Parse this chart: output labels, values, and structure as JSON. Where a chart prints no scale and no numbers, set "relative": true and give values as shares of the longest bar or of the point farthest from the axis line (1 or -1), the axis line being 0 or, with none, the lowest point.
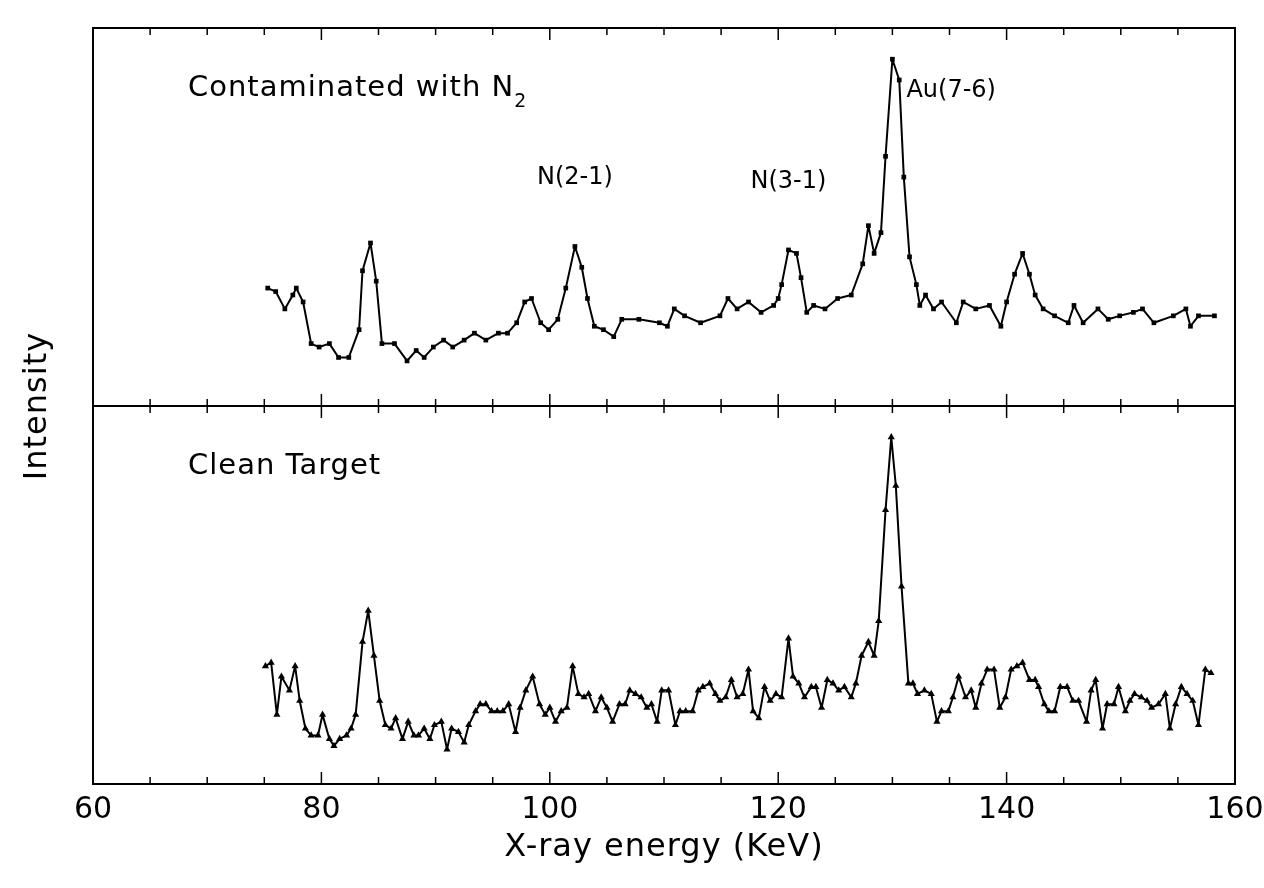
{
  "chart_data": [
    {
      "type": "line",
      "relative": true,
      "ylabel": "Intensity",
      "xlim": [
        60,
        160
      ],
      "xticks": [
        60,
        {
          "value": 65,
          "label": null
        },
        {
          "value": 70,
          "label": null
        },
        {
          "value": 75,
          "label": null
        },
        80,
        {
          "value": 85,
          "label": null
        },
        {
          "value": 90,
          "label": null
        },
        {
          "value": 95,
          "label": null
        },
        100,
        {
          "value": 105,
          "label": null
        },
        {
          "value": 110,
          "label": null
        },
        {
          "value": 115,
          "label": null
        },
        120,
        {
          "value": 125,
          "label": null
        },
        {
          "value": 130,
          "label": null
        },
        {
          "value": 135,
          "label": null
        },
        140,
        {
          "value": 145,
          "label": null
        },
        {
          "value": 150,
          "label": null
        },
        {
          "value": 155,
          "label": null
        },
        160
      ],
      "tick_labels": false,
      "grid": false,
      "marker": "square",
      "line_style": "solid",
      "annotations": [
        "Contaminated with N$_{2}$",
        {
          "text": "N(2-1)",
          "x": 102.2,
          "y": 0.46
        },
        {
          "text": "N(3-1)",
          "x": 120.9,
          "y": 0.45
        },
        {
          "text": "Au(7-6)",
          "x": 130.0,
          "y": 1.0
        }
      ],
      "series": [
        {
          "color": "#000000",
          "x": [
            75.3,
            76.0,
            76.8,
            77.5,
            77.8,
            78.4,
            79.1,
            79.8,
            80.7,
            81.5,
            82.4,
            83.3,
            83.6,
            84.3,
            84.8,
            85.3,
            86.4,
            87.5,
            88.3,
            89.0,
            89.8,
            90.7,
            91.5,
            92.5,
            93.4,
            94.4,
            95.5,
            96.3,
            97.1,
            97.8,
            98.4,
            99.2,
            99.9,
            100.7,
            101.4,
            102.2,
            102.8,
            103.3,
            103.9,
            104.7,
            105.6,
            106.3,
            107.8,
            109.6,
            110.3,
            110.9,
            111.8,
            113.2,
            114.9,
            115.6,
            116.4,
            117.4,
            118.5,
            119.6,
            120.0,
            120.3,
            120.9,
            121.6,
            122.0,
            122.5,
            123.1,
            124.1,
            125.2,
            126.4,
            127.4,
            127.9,
            128.4,
            129.0,
            129.4,
            130.0,
            130.6,
            131.0,
            131.5,
            132.1,
            132.4,
            132.9,
            133.6,
            134.3,
            135.6,
            136.2,
            137.3,
            138.5,
            139.5,
            140.0,
            140.7,
            141.4,
            142.0,
            142.5,
            143.2,
            144.2,
            145.4,
            145.9,
            146.7,
            148.0,
            148.9,
            149.9,
            151.1,
            151.9,
            152.9,
            154.6,
            155.7,
            156.1,
            156.8,
            158.2
          ],
          "values": [
            0.34,
            0.33,
            0.28,
            0.32,
            0.34,
            0.3,
            0.18,
            0.17,
            0.18,
            0.14,
            0.14,
            0.22,
            0.39,
            0.47,
            0.36,
            0.18,
            0.18,
            0.13,
            0.16,
            0.14,
            0.17,
            0.19,
            0.17,
            0.19,
            0.21,
            0.19,
            0.21,
            0.21,
            0.24,
            0.3,
            0.31,
            0.24,
            0.22,
            0.25,
            0.34,
            0.46,
            0.4,
            0.31,
            0.23,
            0.22,
            0.2,
            0.25,
            0.25,
            0.24,
            0.23,
            0.28,
            0.26,
            0.24,
            0.26,
            0.31,
            0.28,
            0.3,
            0.27,
            0.29,
            0.31,
            0.35,
            0.45,
            0.44,
            0.37,
            0.27,
            0.29,
            0.28,
            0.31,
            0.32,
            0.41,
            0.52,
            0.44,
            0.5,
            0.72,
            1.0,
            0.94,
            0.66,
            0.43,
            0.35,
            0.29,
            0.32,
            0.28,
            0.3,
            0.24,
            0.3,
            0.28,
            0.29,
            0.23,
            0.3,
            0.38,
            0.44,
            0.38,
            0.32,
            0.28,
            0.26,
            0.24,
            0.29,
            0.24,
            0.28,
            0.25,
            0.26,
            0.27,
            0.28,
            0.24,
            0.26,
            0.28,
            0.23,
            0.26,
            0.26
          ]
        }
      ]
    },
    {
      "type": "line",
      "relative": true,
      "xlabel": "X-ray energy (KeV)",
      "xlim": [
        60,
        160
      ],
      "xticks": [
        60,
        {
          "value": 65,
          "label": null
        },
        {
          "value": 70,
          "label": null
        },
        {
          "value": 75,
          "label": null
        },
        80,
        {
          "value": 85,
          "label": null
        },
        {
          "value": 90,
          "label": null
        },
        {
          "value": 95,
          "label": null
        },
        100,
        {
          "value": 105,
          "label": null
        },
        {
          "value": 110,
          "label": null
        },
        {
          "value": 115,
          "label": null
        },
        120,
        {
          "value": 125,
          "label": null
        },
        {
          "value": 130,
          "label": null
        },
        {
          "value": 135,
          "label": null
        },
        140,
        {
          "value": 145,
          "label": null
        },
        {
          "value": 150,
          "label": null
        },
        {
          "value": 155,
          "label": null
        },
        160
      ],
      "tick_labels": "x",
      "grid": false,
      "marker": "triangle",
      "line_style": "solid",
      "annotations": [
        "Clean Target"
      ],
      "series": [
        {
          "color": "#000000",
          "x": [
            75.1,
            75.6,
            76.1,
            76.5,
            77.2,
            77.7,
            78.1,
            78.6,
            79.1,
            79.7,
            80.1,
            80.7,
            81.1,
            81.6,
            82.2,
            82.6,
            83.0,
            83.6,
            84.1,
            84.6,
            85.1,
            85.6,
            86.1,
            86.5,
            87.1,
            87.6,
            88.1,
            88.5,
            89.0,
            89.5,
            89.9,
            90.5,
            91.0,
            91.4,
            92.0,
            92.5,
            92.9,
            93.5,
            93.9,
            94.4,
            94.9,
            95.4,
            95.9,
            96.4,
            97.0,
            97.4,
            97.9,
            98.5,
            99.1,
            99.6,
            100.0,
            100.5,
            101.0,
            101.5,
            102.0,
            102.5,
            103.0,
            103.4,
            104.0,
            104.5,
            105.0,
            105.5,
            106.1,
            106.6,
            107.0,
            107.5,
            108.0,
            108.5,
            108.9,
            109.4,
            109.8,
            110.4,
            111.0,
            111.4,
            111.9,
            112.5,
            113.0,
            113.4,
            114.0,
            114.5,
            114.9,
            115.4,
            115.9,
            116.4,
            116.9,
            117.4,
            117.8,
            118.3,
            118.8,
            119.3,
            119.8,
            120.3,
            120.9,
            121.3,
            121.8,
            122.3,
            122.9,
            123.3,
            123.8,
            124.3,
            124.8,
            125.3,
            125.8,
            126.4,
            126.8,
            127.3,
            127.9,
            128.4,
            128.8,
            129.4,
            129.9,
            130.3,
            130.8,
            131.4,
            131.8,
            132.2,
            132.8,
            133.4,
            133.9,
            134.3,
            134.9,
            135.3,
            135.8,
            136.4,
            136.9,
            137.3,
            137.8,
            138.3,
            138.9,
            139.4,
            139.9,
            140.4,
            140.9,
            141.4,
            142.0,
            142.5,
            142.8,
            143.3,
            143.7,
            144.2,
            144.7,
            145.3,
            145.8,
            146.3,
            147.0,
            147.4,
            147.8,
            148.4,
            148.8,
            149.4,
            149.8,
            150.4,
            150.8,
            151.2,
            151.8,
            152.3,
            152.7,
            153.3,
            153.9,
            154.3,
            154.8,
            155.3,
            155.8,
            156.3,
            156.8,
            157.4,
            157.9
          ],
          "values": [
            0.34,
            0.35,
            0.2,
            0.31,
            0.27,
            0.34,
            0.24,
            0.16,
            0.14,
            0.14,
            0.2,
            0.13,
            0.11,
            0.13,
            0.14,
            0.16,
            0.2,
            0.41,
            0.5,
            0.37,
            0.24,
            0.17,
            0.16,
            0.19,
            0.13,
            0.18,
            0.14,
            0.14,
            0.16,
            0.13,
            0.17,
            0.18,
            0.1,
            0.16,
            0.15,
            0.12,
            0.17,
            0.21,
            0.23,
            0.23,
            0.21,
            0.21,
            0.21,
            0.23,
            0.15,
            0.22,
            0.27,
            0.31,
            0.23,
            0.2,
            0.22,
            0.18,
            0.21,
            0.22,
            0.34,
            0.26,
            0.25,
            0.26,
            0.21,
            0.25,
            0.22,
            0.18,
            0.23,
            0.23,
            0.27,
            0.26,
            0.25,
            0.22,
            0.23,
            0.18,
            0.27,
            0.27,
            0.17,
            0.21,
            0.21,
            0.21,
            0.27,
            0.28,
            0.29,
            0.26,
            0.24,
            0.25,
            0.3,
            0.25,
            0.26,
            0.33,
            0.21,
            0.19,
            0.28,
            0.24,
            0.26,
            0.25,
            0.42,
            0.31,
            0.29,
            0.25,
            0.28,
            0.28,
            0.22,
            0.3,
            0.29,
            0.27,
            0.28,
            0.25,
            0.29,
            0.37,
            0.41,
            0.37,
            0.47,
            0.79,
            1.0,
            0.86,
            0.57,
            0.29,
            0.29,
            0.26,
            0.27,
            0.26,
            0.18,
            0.21,
            0.21,
            0.25,
            0.31,
            0.25,
            0.27,
            0.22,
            0.29,
            0.33,
            0.33,
            0.22,
            0.25,
            0.33,
            0.34,
            0.35,
            0.3,
            0.3,
            0.28,
            0.23,
            0.21,
            0.21,
            0.28,
            0.28,
            0.24,
            0.24,
            0.18,
            0.27,
            0.3,
            0.16,
            0.23,
            0.23,
            0.28,
            0.21,
            0.24,
            0.26,
            0.25,
            0.24,
            0.22,
            0.23,
            0.26,
            0.16,
            0.23,
            0.28,
            0.26,
            0.24,
            0.17,
            0.33,
            0.32
          ]
        }
      ]
    }
  ]
}
